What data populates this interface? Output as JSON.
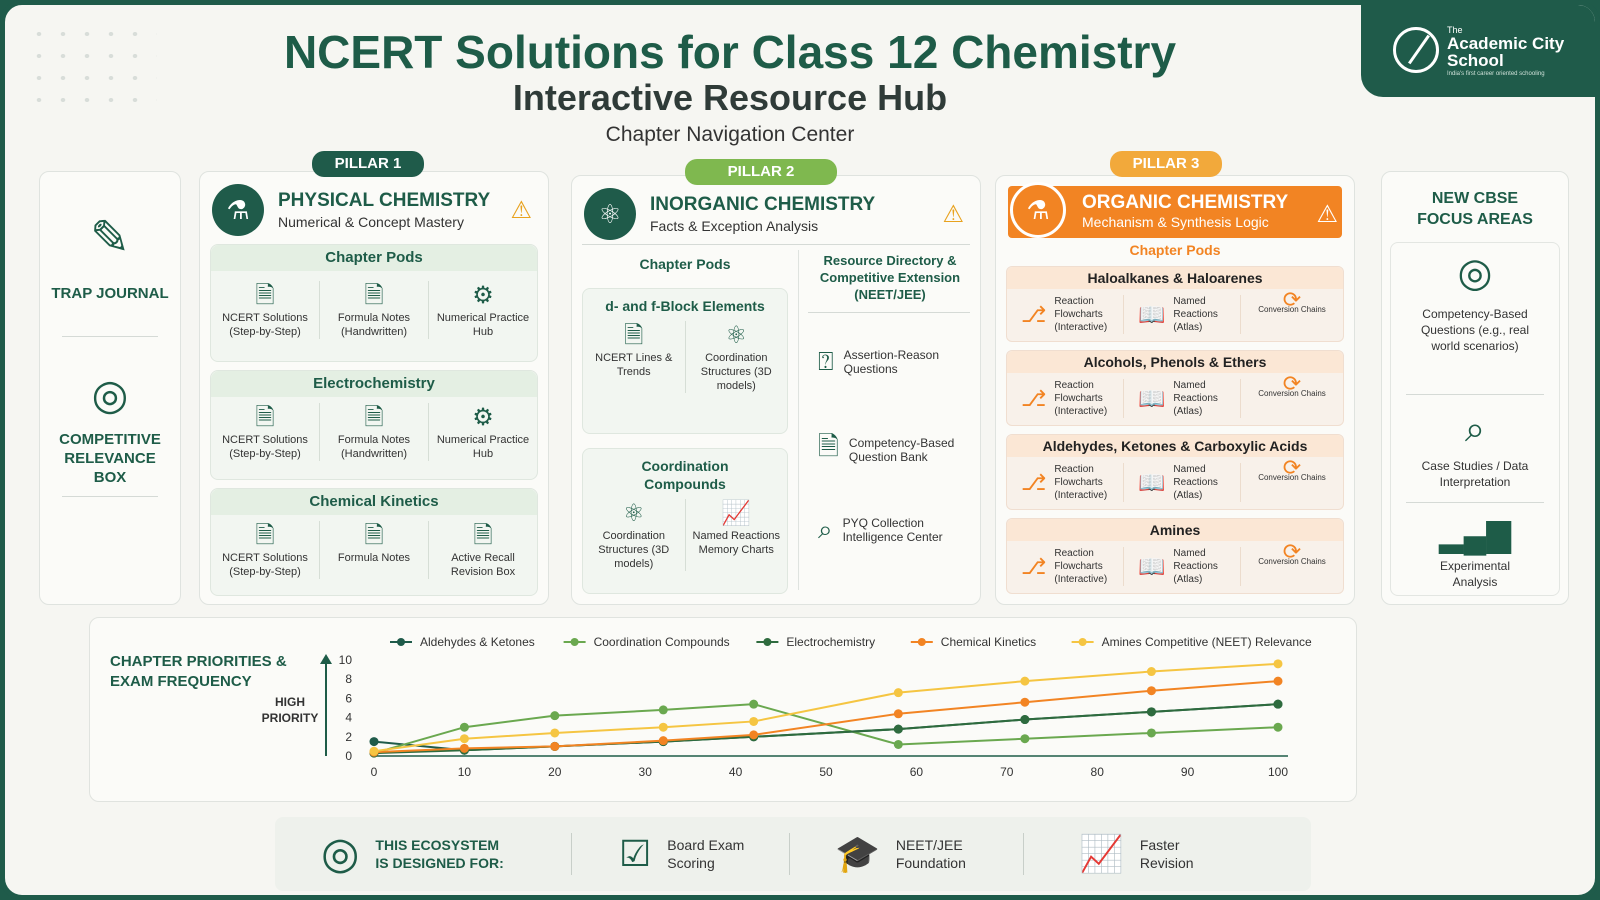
{
  "header": {
    "title": "NCERT Solutions for Class 12 Chemistry",
    "subtitle": "Interactive Resource Hub",
    "section": "Chapter Navigation Center"
  },
  "brand": {
    "the": "The",
    "name": "Academic City School",
    "tagline": "India's first career oriented schooling"
  },
  "left_panel": {
    "trap_journal": "TRAP JOURNAL",
    "competitive_relevance_box": "COMPETITIVE RELEVANCE BOX"
  },
  "pillar1": {
    "badge": "PILLAR 1",
    "title": "PHYSICAL CHEMISTRY",
    "subtitle": "Numerical & Concept Mastery",
    "pods": [
      {
        "title": "Chapter Pods",
        "items": [
          "NCERT Solutions (Step-by-Step)",
          "Formula Notes (Handwritten)",
          "Numerical Practice Hub"
        ]
      },
      {
        "title": "Electrochemistry",
        "items": [
          "NCERT Solutions (Step-by-Step)",
          "Formula Notes (Handwritten)",
          "Numerical Practice Hub"
        ]
      },
      {
        "title": "Chemical Kinetics",
        "items": [
          "NCERT Solutions (Step-by-Step)",
          "Formula Notes",
          "Active Recall Revision Box"
        ]
      }
    ]
  },
  "pillar2": {
    "badge": "PILLAR 2",
    "title": "INORGANIC CHEMISTRY",
    "subtitle": "Facts & Exception Analysis",
    "pods_label": "Chapter Pods",
    "pods": [
      {
        "title": "d- and f-Block Elements",
        "items": [
          "NCERT Lines & Trends",
          "Coordination Structures (3D models)"
        ]
      },
      {
        "title": "Coordination Compounds",
        "items": [
          "Coordination Structures (3D models)",
          "Named Reactions Memory Charts"
        ]
      }
    ],
    "directory_title": "Resource Directory & Competitive Extension (NEET/JEE)",
    "directory": [
      "Assertion-Reason Questions",
      "Competency-Based Question Bank",
      "PYQ Collection Intelligence Center"
    ]
  },
  "pillar3": {
    "badge": "PILLAR 3",
    "title": "ORGANIC CHEMISTRY",
    "subtitle": "Mechanism & Synthesis Logic",
    "pods_label": "Chapter Pods",
    "pods": [
      {
        "title": "Haloalkanes & Haloarenes",
        "items": [
          "Reaction Flowcharts (Interactive)",
          "Named Reactions (Atlas)",
          "Conversion Chains"
        ]
      },
      {
        "title": "Alcohols, Phenols & Ethers",
        "items": [
          "Reaction Flowcharts (Interactive)",
          "Named Reactions (Atlas)",
          "Conversion Chains"
        ]
      },
      {
        "title": "Aldehydes, Ketones & Carboxylic Acids",
        "items": [
          "Reaction Flowcharts (Interactive)",
          "Named Reactions (Atlas)",
          "Conversion Chains"
        ]
      },
      {
        "title": "Amines",
        "items": [
          "Reaction Flowcharts (Interactive)",
          "Named Reactions (Atlas)",
          "Conversion Chains"
        ]
      }
    ]
  },
  "focus": {
    "title": "NEW CBSE FOCUS AREAS",
    "items": [
      "Competency-Based Questions (e.g., real world scenarios)",
      "Case Studies / Data Interpretation",
      "Experimental Analysis"
    ]
  },
  "chart_data": {
    "type": "line",
    "title": "CHAPTER PRIORITIES & EXAM FREQUENCY",
    "ylabel": "HIGH PRIORITY",
    "xlim": [
      0,
      100
    ],
    "ylim": [
      0,
      10
    ],
    "xticks": [
      0,
      10,
      20,
      30,
      40,
      50,
      60,
      70,
      80,
      90,
      100
    ],
    "yticks": [
      0,
      2,
      4,
      6,
      8,
      10
    ],
    "series": [
      {
        "name": "Aldehydes & Ketones",
        "color": "#1f5b4a",
        "x": [
          0,
          10,
          20,
          32,
          42,
          58,
          72,
          86,
          100
        ],
        "y": [
          1.5,
          0.6,
          1.0,
          1.5,
          2.0,
          2.8,
          3.8,
          4.6,
          5.4
        ]
      },
      {
        "name": "Coordination Compounds",
        "color": "#6aa84f",
        "x": [
          0,
          10,
          20,
          32,
          42,
          58,
          72,
          86,
          100
        ],
        "y": [
          0.3,
          3.0,
          4.2,
          4.8,
          5.4,
          1.2,
          1.8,
          2.4,
          3.0
        ]
      },
      {
        "name": "Electrochemistry",
        "color": "#2e6b3e",
        "x": [
          0,
          10,
          20,
          32,
          42,
          58,
          72,
          86,
          100
        ],
        "y": [
          0.3,
          0.6,
          1.0,
          1.5,
          2.0,
          2.8,
          3.8,
          4.6,
          5.4
        ]
      },
      {
        "name": "Chemical Kinetics",
        "color": "#f28423",
        "x": [
          0,
          10,
          20,
          32,
          42,
          58,
          72,
          86,
          100
        ],
        "y": [
          0.4,
          0.8,
          1.0,
          1.6,
          2.2,
          4.4,
          5.6,
          6.8,
          7.8
        ]
      },
      {
        "name": "Amines Competitive (NEET) Relevance",
        "color": "#f5c542",
        "x": [
          0,
          10,
          20,
          32,
          42,
          58,
          72,
          86,
          100
        ],
        "y": [
          0.5,
          1.8,
          2.4,
          3.0,
          3.6,
          6.6,
          7.8,
          8.8,
          9.6
        ]
      }
    ]
  },
  "bottom": {
    "label": "THIS ECOSYSTEM IS DESIGNED FOR:",
    "items": [
      "Board Exam Scoring",
      "NEET/JEE Foundation",
      "Faster Revision"
    ]
  }
}
